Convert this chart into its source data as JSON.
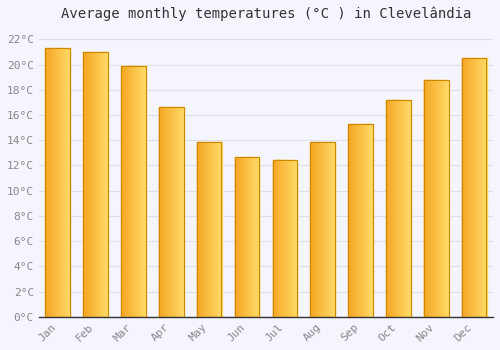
{
  "title": "Average monthly temperatures (°C ) in Clevelândia",
  "months": [
    "Jan",
    "Feb",
    "Mar",
    "Apr",
    "May",
    "Jun",
    "Jul",
    "Aug",
    "Sep",
    "Oct",
    "Nov",
    "Dec"
  ],
  "values": [
    21.3,
    21.0,
    19.9,
    16.6,
    13.9,
    12.7,
    12.4,
    13.9,
    15.3,
    17.2,
    18.8,
    20.5
  ],
  "bar_color_left": "#F5A623",
  "bar_color_right": "#FFD966",
  "bar_edge_color": "#CC8800",
  "background_color": "#F5F5FF",
  "grid_color": "#E0E0E8",
  "plot_bg_color": "#F5F5FF",
  "ylim": [
    0,
    23
  ],
  "ytick_step": 2,
  "title_fontsize": 10,
  "tick_fontsize": 8,
  "tick_color": "#888888",
  "spine_color": "#333333",
  "bar_width": 0.65
}
